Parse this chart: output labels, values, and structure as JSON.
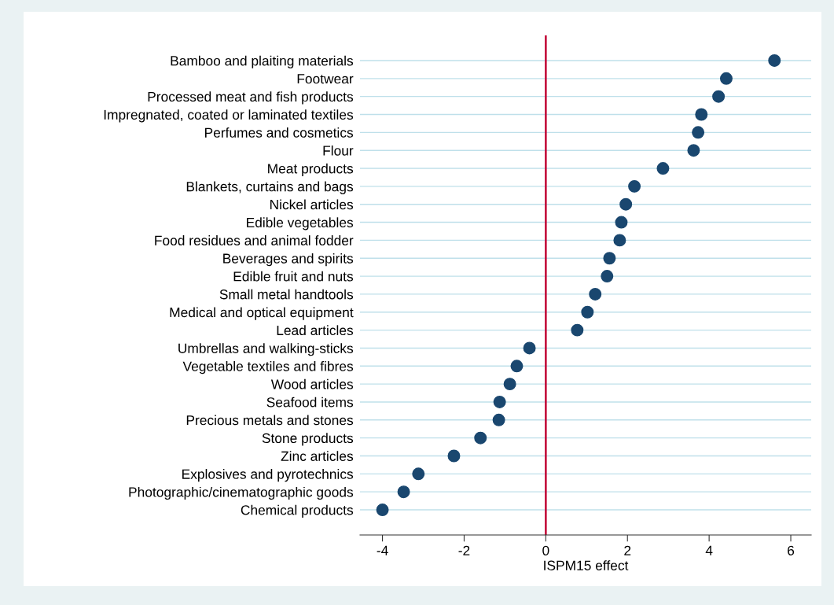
{
  "chart_data": {
    "type": "scatter",
    "orientation": "horizontal",
    "xlabel": "ISPM15 effect",
    "categories": [
      "Bamboo and plaiting materials",
      "Footwear",
      "Processed meat and fish products",
      "Impregnated, coated or laminated textiles",
      "Perfumes and cosmetics",
      "Flour",
      "Meat products",
      "Blankets, curtains and bags",
      "Nickel articles",
      "Edible vegetables",
      "Food residues and animal fodder",
      "Beverages and spirits",
      "Edible fruit and nuts",
      "Small metal handtools",
      "Medical and optical equipment",
      "Lead articles",
      "Umbrellas and walking-sticks",
      "Vegetable textiles and fibres",
      "Wood articles",
      "Seafood items",
      "Precious metals and stones",
      "Stone products",
      "Zinc articles",
      "Explosives and pyrotechnics",
      "Photographic/cinematographic goods",
      "Chemical products"
    ],
    "values": [
      5.6,
      4.42,
      4.23,
      3.81,
      3.73,
      3.62,
      2.87,
      2.17,
      1.96,
      1.85,
      1.81,
      1.56,
      1.5,
      1.21,
      1.02,
      0.77,
      -0.4,
      -0.71,
      -0.88,
      -1.13,
      -1.15,
      -1.6,
      -2.25,
      -3.12,
      -3.48,
      -4.0
    ],
    "color": "#1a476f",
    "marker": "circle",
    "xlim": [
      -4.55,
      6.5
    ],
    "xticks": [
      -4,
      -2,
      0,
      2,
      4,
      6
    ],
    "grid": "y",
    "ref_lines": [
      {
        "axis": "x",
        "value": 0,
        "color": "#c10534",
        "line_style": "solid"
      }
    ]
  }
}
